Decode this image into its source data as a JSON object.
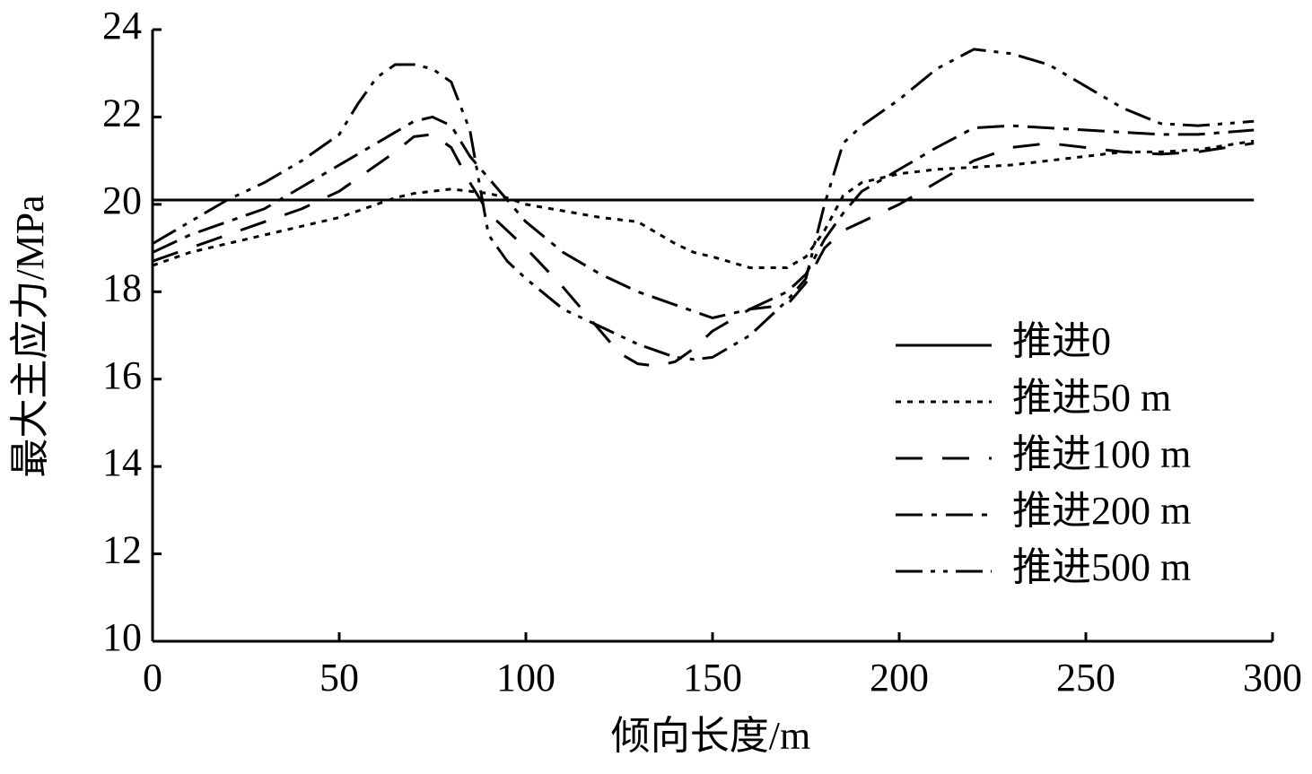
{
  "chart_data": {
    "type": "line",
    "xlabel": "倾向长度/m",
    "ylabel": "最大主应力/MPa",
    "x": [
      0,
      10,
      20,
      30,
      40,
      50,
      55,
      60,
      65,
      70,
      75,
      80,
      85,
      90,
      95,
      100,
      110,
      120,
      125,
      130,
      135,
      140,
      145,
      150,
      160,
      170,
      175,
      180,
      185,
      190,
      200,
      210,
      220,
      230,
      240,
      250,
      260,
      270,
      280,
      295
    ],
    "series": [
      {
        "name": "推进0",
        "color": "#000000",
        "line_style": "solid",
        "values": [
          20.1,
          20.1,
          20.1,
          20.1,
          20.1,
          20.1,
          20.1,
          20.1,
          20.1,
          20.1,
          20.1,
          20.1,
          20.1,
          20.1,
          20.1,
          20.1,
          20.1,
          20.1,
          20.1,
          20.1,
          20.1,
          20.1,
          20.1,
          20.1,
          20.1,
          20.1,
          20.1,
          20.1,
          20.1,
          20.1,
          20.1,
          20.1,
          20.1,
          20.1,
          20.1,
          20.1,
          20.1,
          20.1,
          20.1,
          20.1
        ]
      },
      {
        "name": "推进50 m",
        "color": "#000000",
        "line_style": "dotted",
        "values": [
          18.6,
          18.9,
          19.1,
          19.3,
          19.5,
          19.7,
          19.85,
          20.0,
          20.15,
          20.25,
          20.3,
          20.35,
          20.3,
          20.25,
          20.15,
          20.0,
          19.85,
          19.7,
          19.65,
          19.6,
          19.35,
          19.1,
          18.9,
          18.8,
          18.55,
          18.55,
          18.8,
          19.4,
          20.2,
          20.5,
          20.7,
          20.8,
          20.85,
          20.9,
          21.0,
          21.1,
          21.2,
          21.2,
          21.25,
          21.45
        ]
      },
      {
        "name": "推进100 m",
        "color": "#000000",
        "line_style": "dashed",
        "values": [
          18.7,
          19.0,
          19.3,
          19.6,
          19.9,
          20.3,
          20.6,
          20.9,
          21.2,
          21.55,
          21.6,
          21.3,
          20.5,
          19.8,
          19.4,
          19.0,
          18.1,
          17.1,
          16.6,
          16.35,
          16.3,
          16.4,
          16.7,
          17.1,
          17.6,
          17.7,
          18.2,
          19.0,
          19.4,
          19.6,
          20.0,
          20.5,
          21.0,
          21.3,
          21.4,
          21.3,
          21.2,
          21.15,
          21.2,
          21.4
        ]
      },
      {
        "name": "推进200 m",
        "color": "#000000",
        "line_style": "dash-dot",
        "values": [
          18.9,
          19.3,
          19.6,
          19.9,
          20.4,
          20.9,
          21.15,
          21.4,
          21.65,
          21.9,
          22.0,
          21.8,
          21.1,
          20.6,
          20.1,
          19.6,
          18.9,
          18.4,
          18.2,
          18.0,
          17.85,
          17.7,
          17.55,
          17.4,
          17.6,
          18.0,
          18.4,
          19.2,
          19.8,
          20.3,
          20.8,
          21.3,
          21.75,
          21.8,
          21.75,
          21.7,
          21.65,
          21.6,
          21.6,
          21.7
        ]
      },
      {
        "name": "推进500 m",
        "color": "#000000",
        "line_style": "dash-dot-dot",
        "values": [
          19.1,
          19.6,
          20.1,
          20.5,
          21.0,
          21.6,
          22.3,
          22.9,
          23.2,
          23.2,
          23.1,
          22.8,
          21.7,
          19.3,
          18.7,
          18.3,
          17.6,
          17.2,
          17.0,
          16.8,
          16.65,
          16.5,
          16.45,
          16.5,
          17.0,
          17.8,
          18.3,
          20.0,
          21.4,
          21.8,
          22.4,
          23.1,
          23.55,
          23.45,
          23.2,
          22.7,
          22.2,
          21.85,
          21.8,
          21.9
        ]
      }
    ],
    "xlim": [
      0,
      300
    ],
    "xticks": [
      0,
      50,
      100,
      150,
      200,
      250,
      300
    ],
    "ylim": [
      10,
      24
    ],
    "yticks": [
      10,
      12,
      14,
      16,
      18,
      20,
      22,
      24
    ],
    "grid": false,
    "legend": "right"
  }
}
